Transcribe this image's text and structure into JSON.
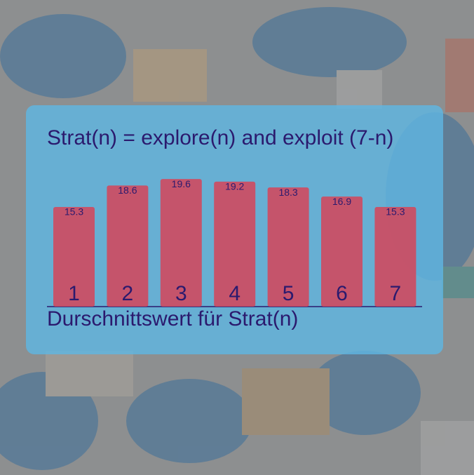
{
  "chart_data": {
    "type": "bar",
    "title": "Strat(n) = explore(n) and exploit (7-n)",
    "x_label": "Durschnittswert für Strat(n)",
    "categories": [
      "1",
      "2",
      "3",
      "4",
      "5",
      "6",
      "7"
    ],
    "values": [
      15.3,
      18.6,
      19.6,
      19.2,
      18.3,
      16.9,
      15.3
    ],
    "color": "#d64458"
  }
}
